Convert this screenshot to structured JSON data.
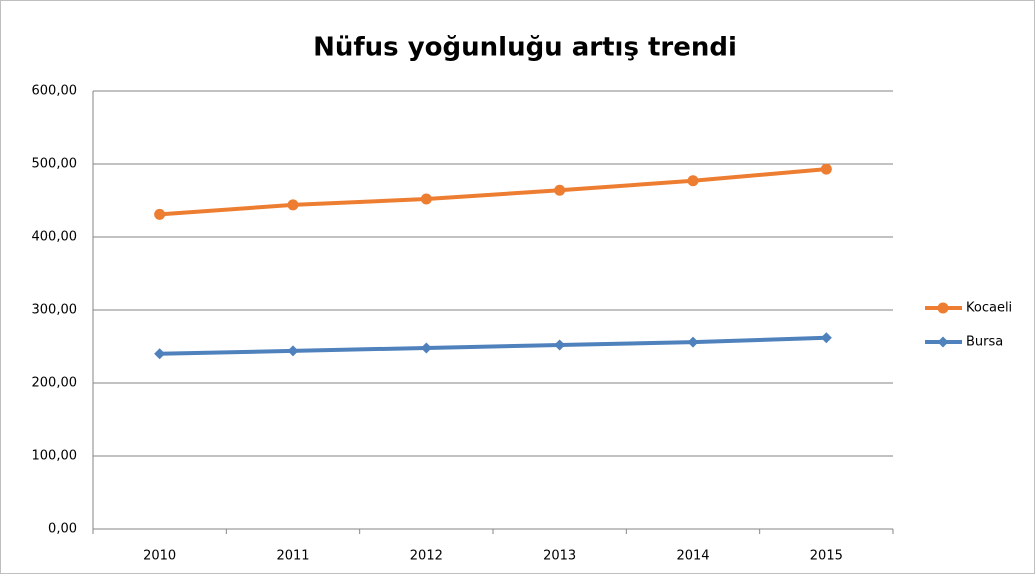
{
  "chart_data": {
    "type": "line",
    "title": "Nüfus yoğunluğu artış trendi",
    "categories": [
      "2010",
      "2011",
      "2012",
      "2013",
      "2014",
      "2015"
    ],
    "series": [
      {
        "name": "Kocaeli",
        "color": "#ED7D31",
        "marker": "circle",
        "values": [
          431,
          444,
          452,
          464,
          477,
          493
        ]
      },
      {
        "name": "Bursa",
        "color": "#4F81BD",
        "marker": "diamond",
        "values": [
          240,
          244,
          248,
          252,
          256,
          262
        ]
      }
    ],
    "ylim": [
      0,
      600
    ],
    "yticks": [
      {
        "value": 0,
        "label": "0,00"
      },
      {
        "value": 100,
        "label": "100,00"
      },
      {
        "value": 200,
        "label": "200,00"
      },
      {
        "value": 300,
        "label": "300,00"
      },
      {
        "value": 400,
        "label": "400,00"
      },
      {
        "value": 500,
        "label": "500,00"
      },
      {
        "value": 600,
        "label": "600,00"
      }
    ],
    "grid": true,
    "legend": "right"
  }
}
